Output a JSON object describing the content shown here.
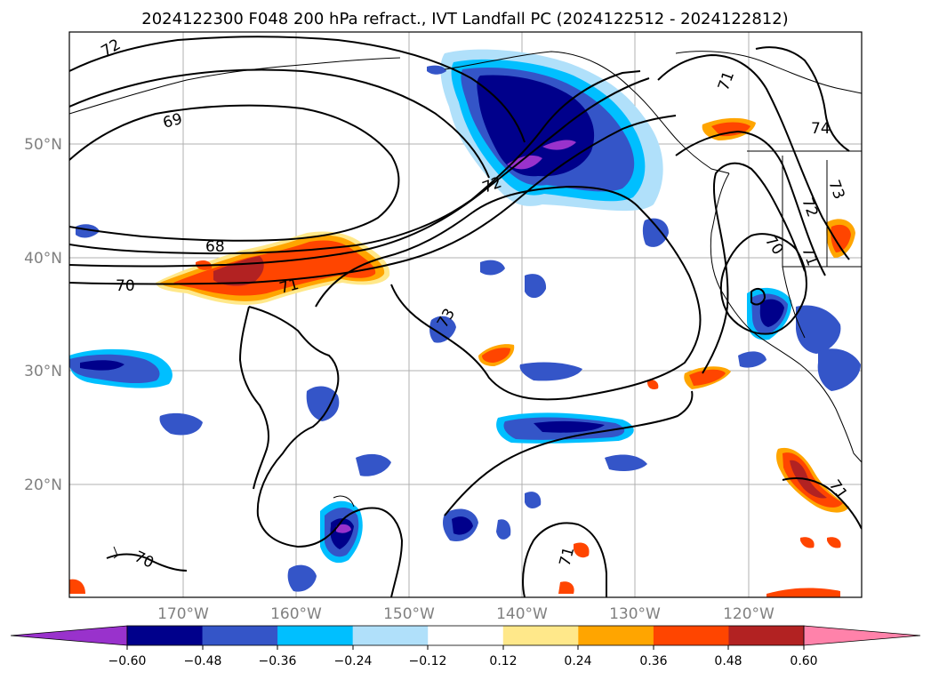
{
  "title": "2024122300 F048 200 hPa refract., IVT Landfall PC (2024122512 - 2024122812)",
  "map": {
    "lat_labels": [
      "50°N",
      "40°N",
      "30°N",
      "20°N"
    ],
    "lon_labels": [
      "170°W",
      "160°W",
      "150°W",
      "140°W",
      "130°W",
      "120°W"
    ],
    "contour_labels": [
      "72",
      "69",
      "68",
      "70",
      "71",
      "72",
      "73",
      "71",
      "74",
      "73",
      "72",
      "70",
      "71",
      "70",
      "71",
      "71"
    ],
    "grid": true
  },
  "colorbar": {
    "tick_labels": [
      "−0.60",
      "−0.48",
      "−0.36",
      "−0.24",
      "−0.12",
      "0.12",
      "0.24",
      "0.36",
      "0.48",
      "0.60"
    ],
    "colors": [
      "#9932cc",
      "#00008b",
      "#3455c8",
      "#00bfff",
      "#b0e0fa",
      "#ffffff",
      "#ffe88a",
      "#ffa500",
      "#ff4500",
      "#b22222",
      "#ff82aa"
    ],
    "extend": "both"
  }
}
